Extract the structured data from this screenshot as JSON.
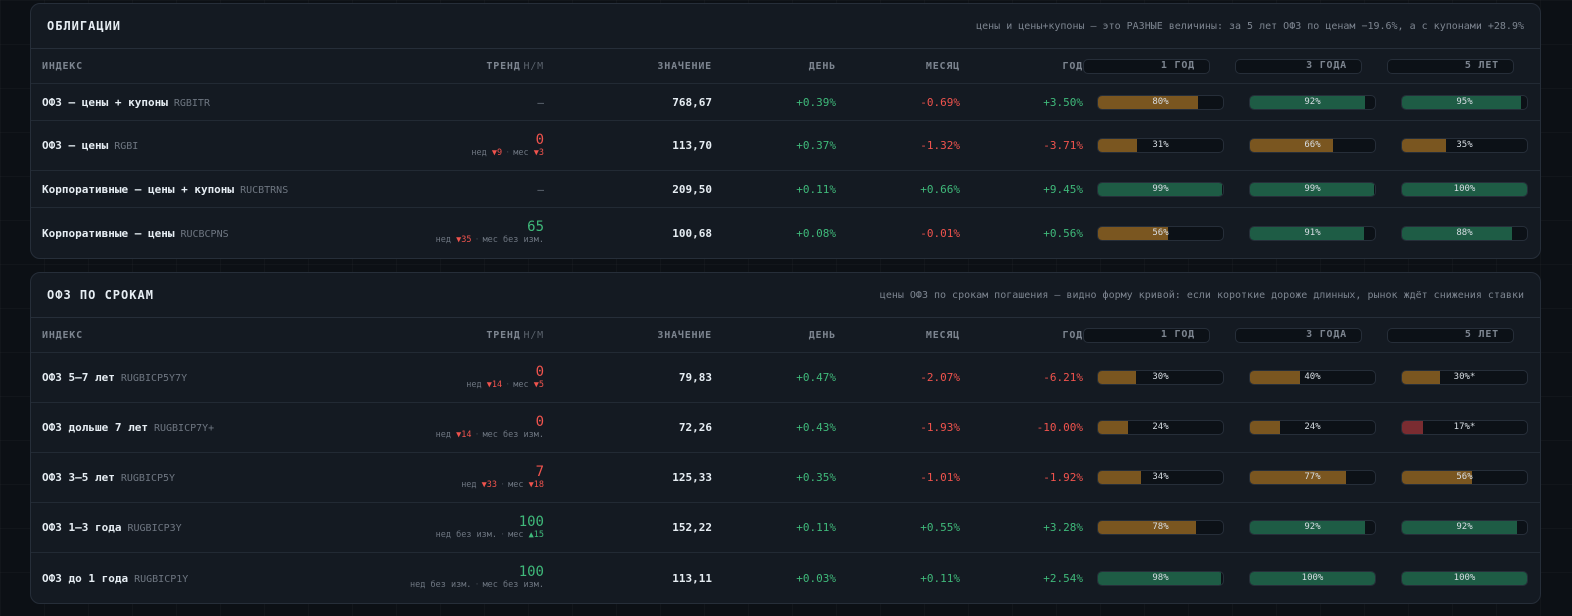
{
  "panels": [
    {
      "title": "ОБЛИГАЦИИ",
      "note": "цены и цены+купоны — это РАЗНЫЕ величины: за 5 лет ОФЗ по ценам −19.6%, а с купонами +28.9%",
      "columns": {
        "index": "ИНДЕКС",
        "trend": "ТРЕНД",
        "trend_sub": "Н/М",
        "value": "ЗНАЧЕНИЕ",
        "day": "ДЕНЬ",
        "month": "МЕСЯЦ",
        "year": "ГОД",
        "y1": "1 ГОД",
        "y3": "3 ГОДА",
        "y5": "5 ЛЕТ"
      },
      "rows": [
        {
          "name": "ОФЗ — цены + купоны",
          "code": "RGBITR",
          "trend": {
            "dash": "—"
          },
          "value": "768,67",
          "day": "+0.39%",
          "month": "-0.69%",
          "year": "+3.50%",
          "bars": [
            {
              "label": "80%",
              "fill": 0.8,
              "color": "orange"
            },
            {
              "label": "92%",
              "fill": 0.92,
              "color": "green"
            },
            {
              "label": "95%",
              "fill": 0.95,
              "color": "green"
            }
          ]
        },
        {
          "name": "ОФЗ — цены",
          "code": "RGBI",
          "trend": {
            "score": "0",
            "score_color": "neg",
            "w_label": "нед",
            "w_val": "▼9",
            "w_color": "neg",
            "m_label": "мес",
            "m_val": "▼3",
            "m_color": "neg"
          },
          "value": "113,70",
          "day": "+0.37%",
          "month": "-1.32%",
          "year": "-3.71%",
          "bars": [
            {
              "label": "31%",
              "fill": 0.31,
              "color": "orange"
            },
            {
              "label": "66%",
              "fill": 0.66,
              "color": "orange"
            },
            {
              "label": "35%",
              "fill": 0.35,
              "color": "orange"
            }
          ]
        },
        {
          "name": "Корпоративные — цены + купоны",
          "code": "RUCBTRNS",
          "trend": {
            "dash": "—"
          },
          "value": "209,50",
          "day": "+0.11%",
          "month": "+0.66%",
          "year": "+9.45%",
          "bars": [
            {
              "label": "99%",
              "fill": 0.99,
              "color": "green"
            },
            {
              "label": "99%",
              "fill": 0.99,
              "color": "green"
            },
            {
              "label": "100%",
              "fill": 1.0,
              "color": "green"
            }
          ]
        },
        {
          "name": "Корпоративные — цены",
          "code": "RUCBCPNS",
          "trend": {
            "score": "65",
            "score_color": "pos",
            "w_label": "нед",
            "w_val": "▼35",
            "w_color": "neg",
            "m_label": "мес",
            "m_val": "без изм.",
            "m_color": "muted"
          },
          "value": "100,68",
          "day": "+0.08%",
          "month": "-0.01%",
          "year": "+0.56%",
          "bars": [
            {
              "label": "56%",
              "fill": 0.56,
              "color": "orange"
            },
            {
              "label": "91%",
              "fill": 0.91,
              "color": "green"
            },
            {
              "label": "88%",
              "fill": 0.88,
              "color": "green"
            }
          ]
        }
      ]
    },
    {
      "title": "ОФЗ ПО СРОКАМ",
      "note": "цены ОФЗ по срокам погашения — видно форму кривой: если короткие дороже длинных, рынок ждёт снижения ставки",
      "columns": {
        "index": "ИНДЕКС",
        "trend": "ТРЕНД",
        "trend_sub": "Н/М",
        "value": "ЗНАЧЕНИЕ",
        "day": "ДЕНЬ",
        "month": "МЕСЯЦ",
        "year": "ГОД",
        "y1": "1 ГОД",
        "y3": "3 ГОДА",
        "y5": "5 ЛЕТ"
      },
      "rows": [
        {
          "name": "ОФЗ 5–7 лет",
          "code": "RUGBICP5Y7Y",
          "trend": {
            "score": "0",
            "score_color": "neg",
            "w_label": "нед",
            "w_val": "▼14",
            "w_color": "neg",
            "m_label": "мес",
            "m_val": "▼5",
            "m_color": "neg"
          },
          "value": "79,83",
          "day": "+0.47%",
          "month": "-2.07%",
          "year": "-6.21%",
          "bars": [
            {
              "label": "30%",
              "fill": 0.3,
              "color": "orange"
            },
            {
              "label": "40%",
              "fill": 0.4,
              "color": "orange"
            },
            {
              "label": "30%*",
              "fill": 0.3,
              "color": "orange"
            }
          ]
        },
        {
          "name": "ОФЗ дольше 7 лет",
          "code": "RUGBICP7Y+",
          "trend": {
            "score": "0",
            "score_color": "neg",
            "w_label": "нед",
            "w_val": "▼14",
            "w_color": "neg",
            "m_label": "мес",
            "m_val": "без изм.",
            "m_color": "muted"
          },
          "value": "72,26",
          "day": "+0.43%",
          "month": "-1.93%",
          "year": "-10.00%",
          "bars": [
            {
              "label": "24%",
              "fill": 0.24,
              "color": "orange"
            },
            {
              "label": "24%",
              "fill": 0.24,
              "color": "orange"
            },
            {
              "label": "17%*",
              "fill": 0.17,
              "color": "red"
            }
          ]
        },
        {
          "name": "ОФЗ 3–5 лет",
          "code": "RUGBICP5Y",
          "trend": {
            "score": "7",
            "score_color": "neg",
            "w_label": "нед",
            "w_val": "▼33",
            "w_color": "neg",
            "m_label": "мес",
            "m_val": "▼18",
            "m_color": "neg"
          },
          "value": "125,33",
          "day": "+0.35%",
          "month": "-1.01%",
          "year": "-1.92%",
          "bars": [
            {
              "label": "34%",
              "fill": 0.34,
              "color": "orange"
            },
            {
              "label": "77%",
              "fill": 0.77,
              "color": "orange"
            },
            {
              "label": "56%",
              "fill": 0.56,
              "color": "orange"
            }
          ]
        },
        {
          "name": "ОФЗ 1–3 года",
          "code": "RUGBICP3Y",
          "trend": {
            "score": "100",
            "score_color": "pos",
            "w_label": "нед",
            "w_val": "без изм.",
            "w_color": "muted",
            "m_label": "мес",
            "m_val": "▲15",
            "m_color": "pos"
          },
          "value": "152,22",
          "day": "+0.11%",
          "month": "+0.55%",
          "year": "+3.28%",
          "bars": [
            {
              "label": "78%",
              "fill": 0.78,
              "color": "orange"
            },
            {
              "label": "92%",
              "fill": 0.92,
              "color": "green"
            },
            {
              "label": "92%",
              "fill": 0.92,
              "color": "green"
            }
          ]
        },
        {
          "name": "ОФЗ до 1 года",
          "code": "RUGBICP1Y",
          "trend": {
            "score": "100",
            "score_color": "pos",
            "w_label": "нед",
            "w_val": "без изм.",
            "w_color": "muted",
            "m_label": "мес",
            "m_val": "без изм.",
            "m_color": "muted"
          },
          "value": "113,11",
          "day": "+0.03%",
          "month": "+0.11%",
          "year": "+2.54%",
          "bars": [
            {
              "label": "98%",
              "fill": 0.98,
              "color": "green"
            },
            {
              "label": "100%",
              "fill": 1.0,
              "color": "green"
            },
            {
              "label": "100%",
              "fill": 1.0,
              "color": "green"
            }
          ]
        }
      ]
    }
  ]
}
